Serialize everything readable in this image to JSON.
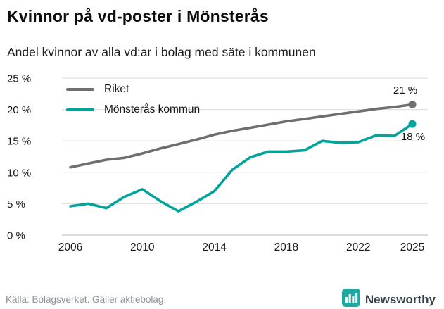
{
  "header": {
    "title": "Kvinnor på vd-poster i Mönsterås",
    "subtitle": "Andel kvinnor av alla vd:ar i bolag med säte i kommunen"
  },
  "footer": {
    "source": "Källa: Bolagsverket. Gäller aktiebolag.",
    "brand": "Newsworthy"
  },
  "colors": {
    "riket_gray": "#6e6e71",
    "monsteras_teal": "#00a49a",
    "gridline": "#e2e2e2",
    "baseline": "#c7c7c7",
    "brand_icon": "#1fa8a0"
  },
  "chart_data": {
    "type": "line",
    "title": "Kvinnor på vd-poster i Mönsterås",
    "subtitle": "Andel kvinnor av alla vd:ar i bolag med säte i kommunen",
    "x": [
      2006,
      2007,
      2008,
      2009,
      2010,
      2011,
      2012,
      2013,
      2014,
      2015,
      2016,
      2017,
      2018,
      2019,
      2020,
      2021,
      2022,
      2023,
      2024,
      2025
    ],
    "series": [
      {
        "name": "Riket",
        "color": "#6e6e71",
        "values": [
          10.8,
          11.4,
          12.0,
          12.3,
          13.0,
          13.8,
          14.5,
          15.2,
          16.0,
          16.6,
          17.1,
          17.6,
          18.1,
          18.5,
          18.9,
          19.3,
          19.7,
          20.1,
          20.4,
          20.8
        ],
        "end_label": "21 %"
      },
      {
        "name": "Mönsterås kommun",
        "color": "#00a49a",
        "values": [
          4.6,
          5.0,
          4.3,
          6.1,
          7.3,
          5.4,
          3.8,
          5.3,
          7.0,
          10.4,
          12.4,
          13.3,
          13.3,
          13.5,
          15.0,
          14.7,
          14.8,
          15.9,
          15.8,
          17.7
        ],
        "end_label": "18 %"
      }
    ],
    "ylim": [
      0,
      25
    ],
    "yticks": [
      0,
      5,
      10,
      15,
      20,
      25
    ],
    "ytick_labels": [
      "0 %",
      "5 %",
      "10 %",
      "15 %",
      "20 %",
      "25 %"
    ],
    "xticks": [
      2006,
      2010,
      2014,
      2018,
      2022,
      2025
    ],
    "grid": "horizontal",
    "legend_position": "top-left-inside"
  }
}
